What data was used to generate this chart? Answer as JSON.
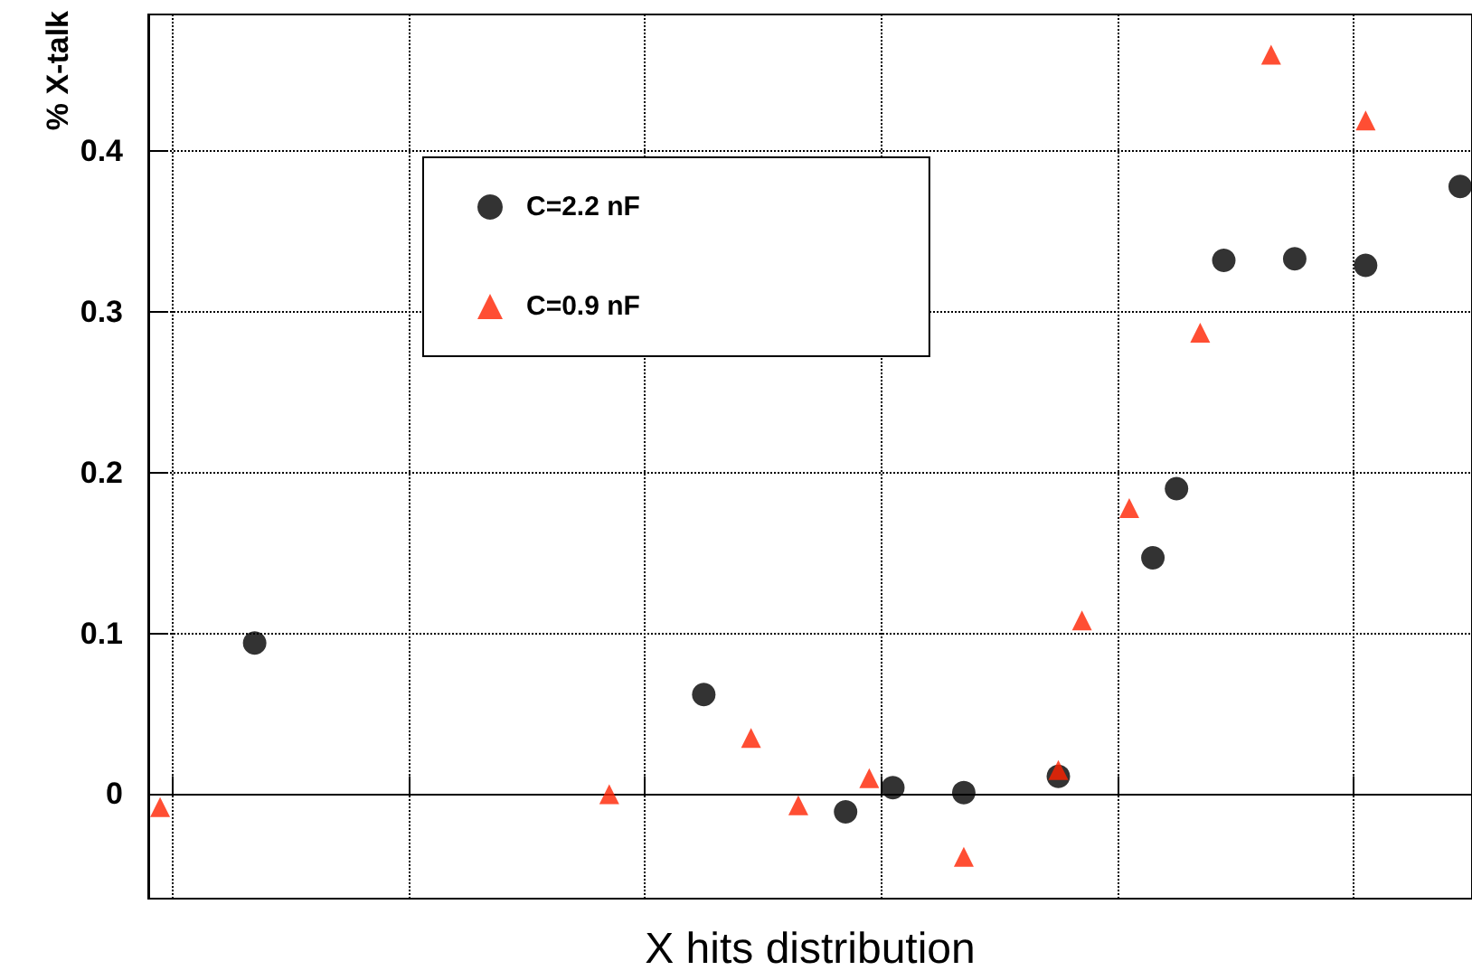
{
  "chart_data": {
    "type": "scatter",
    "xlabel": "X hits distribution",
    "ylabel": "% X-talk",
    "categories": [
      null,
      null,
      null,
      null,
      null,
      null,
      null,
      null,
      null,
      null,
      null,
      null,
      null,
      null,
      null,
      null,
      null,
      null,
      null,
      null,
      null,
      null,
      null,
      null,
      null,
      null,
      null,
      null,
      null,
      null,
      null,
      null,
      null,
      null,
      null,
      null,
      null,
      null,
      null,
      null,
      null,
      null,
      null,
      null,
      null,
      null,
      null,
      null,
      null,
      null,
      null,
      null,
      null,
      null,
      null,
      null
    ],
    "series": [
      {
        "name": "C=2.2 nF",
        "color": "#000000",
        "marker": "circle",
        "values": [
          null,
          null,
          null,
          null,
          0.094,
          null,
          null,
          null,
          null,
          null,
          null,
          null,
          null,
          null,
          null,
          null,
          null,
          null,
          null,
          null,
          null,
          null,
          null,
          0.062,
          null,
          null,
          null,
          null,
          null,
          -0.011,
          null,
          0.004,
          null,
          null,
          0.001,
          null,
          null,
          null,
          0.011,
          null,
          null,
          null,
          0.147,
          0.19,
          null,
          0.332,
          null,
          null,
          0.333,
          null,
          null,
          0.329,
          null,
          null,
          null,
          0.378
        ]
      },
      {
        "name": "C=0.9 nF",
        "color": "#ff2200",
        "marker": "triangle",
        "values": [
          -0.008,
          null,
          null,
          null,
          null,
          null,
          null,
          null,
          null,
          null,
          null,
          null,
          null,
          null,
          null,
          null,
          null,
          null,
          null,
          0.0,
          null,
          null,
          null,
          null,
          null,
          0.035,
          null,
          -0.007,
          null,
          null,
          0.01,
          null,
          null,
          null,
          -0.039,
          null,
          null,
          null,
          0.015,
          0.108,
          null,
          0.178,
          null,
          null,
          0.287,
          null,
          null,
          0.46,
          null,
          null,
          null,
          0.419,
          null,
          null,
          null,
          null
        ]
      }
    ],
    "ylim": [
      -0.065,
      0.485
    ],
    "yticks": [
      0,
      0.1,
      0.2,
      0.3,
      0.4
    ],
    "grid": true,
    "legend": "top left",
    "tick_labels": "y"
  }
}
